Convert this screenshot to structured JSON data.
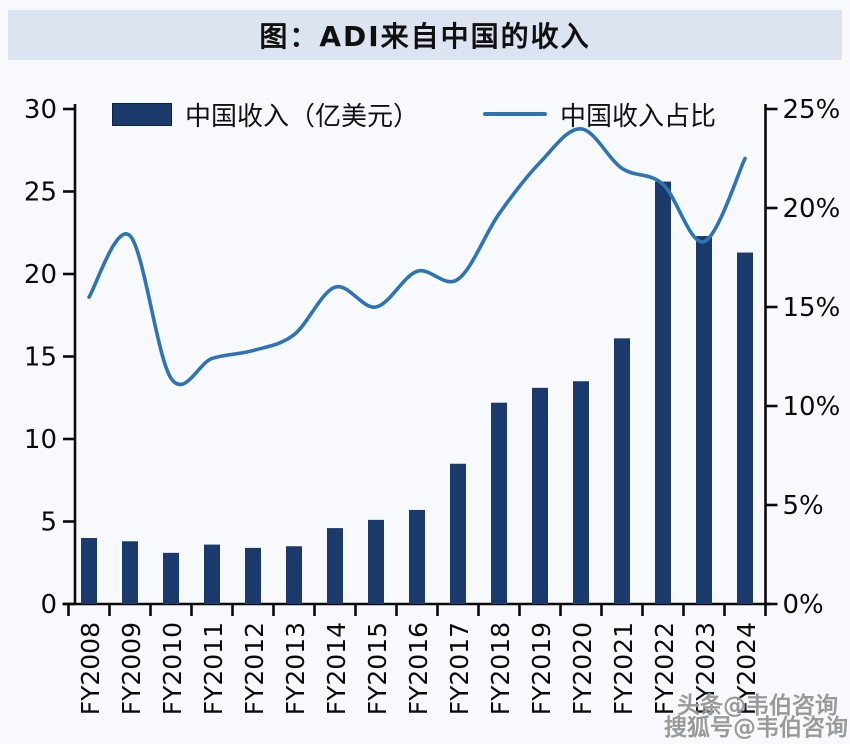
{
  "title": "图：ADI来自中国的收入",
  "watermark": {
    "line1": "头条@韦伯咨询",
    "line2": "搜狐号@韦伯咨询"
  },
  "colors": {
    "bar": "#1a3a6b",
    "line": "#2e74b5",
    "banner_bg": "#dbe4f0",
    "page_bg": "#f7f9fc",
    "axis": "#0a0a0a",
    "tick_text": "#0a0a0a",
    "watermark": "#9a9a9a"
  },
  "chart_data": {
    "type": "bar",
    "subtype": "bar+line combo, dual y-axes",
    "title": "图：ADI来自中国的收入",
    "categories": [
      "FY2008",
      "FY2009",
      "FY2010",
      "FY2011",
      "FY2012",
      "FY2013",
      "FY2014",
      "FY2015",
      "FY2016",
      "FY2017",
      "FY2018",
      "FY2019",
      "FY2020",
      "FY2021",
      "FY2022",
      "FY2023",
      "FY2024"
    ],
    "series": [
      {
        "name": "中国收入（亿美元）",
        "type": "bar",
        "yaxis": "left",
        "values": [
          4.0,
          3.8,
          3.1,
          3.6,
          3.4,
          3.5,
          4.6,
          5.1,
          5.7,
          8.5,
          12.2,
          13.1,
          13.5,
          16.1,
          25.6,
          22.3,
          21.3
        ]
      },
      {
        "name": "中国收入占比",
        "type": "line",
        "yaxis": "right",
        "unit": "%",
        "values": [
          15.5,
          18.6,
          11.4,
          12.4,
          12.8,
          13.6,
          16.0,
          15.0,
          16.8,
          16.4,
          19.7,
          22.3,
          24.0,
          22.0,
          21.2,
          18.3,
          22.5
        ]
      }
    ],
    "left_axis": {
      "min": 0,
      "max": 30,
      "tick_step": 5,
      "tick_labels": [
        "0",
        "5",
        "10",
        "15",
        "20",
        "25",
        "30"
      ]
    },
    "right_axis": {
      "min": 0,
      "max": 25,
      "tick_step": 5,
      "tick_labels": [
        "0%",
        "5%",
        "10%",
        "15%",
        "20%",
        "25%"
      ]
    },
    "grid": false,
    "legend_position": "top-inside",
    "xlabel_rotation": -90
  }
}
